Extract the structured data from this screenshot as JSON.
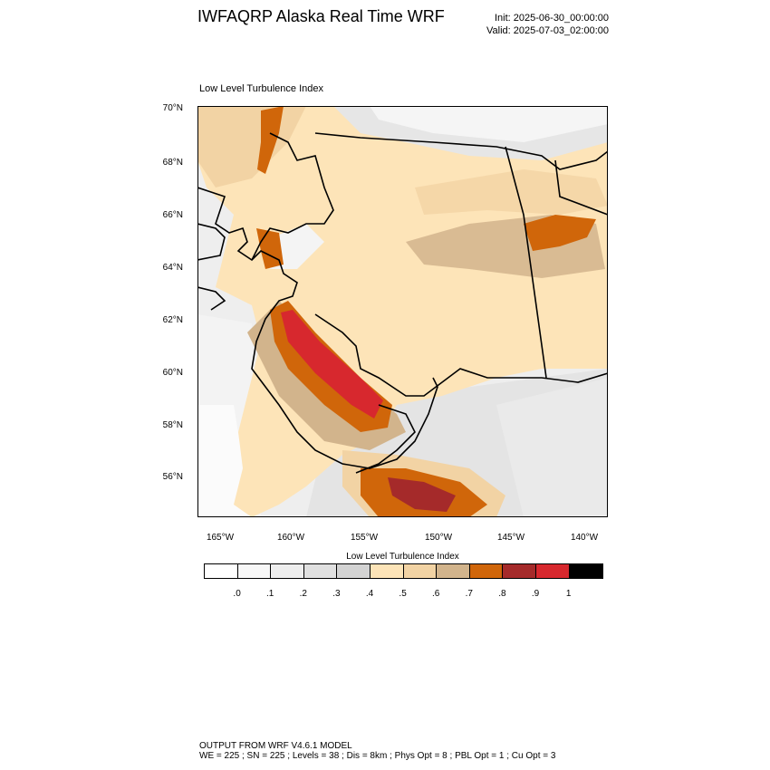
{
  "header": {
    "title": "IWFAQRP Alaska Real Time WRF",
    "init": "Init: 2025-06-30_00:00:00",
    "valid": "Valid: 2025-07-03_02:00:00"
  },
  "map": {
    "subtitle": "Low Level Turbulence Index",
    "lat_labels": [
      "70°N",
      "68°N",
      "66°N",
      "64°N",
      "62°N",
      "60°N",
      "58°N",
      "56°N"
    ],
    "lon_labels": [
      "165°W",
      "160°W",
      "155°W",
      "150°W",
      "145°W",
      "140°W"
    ]
  },
  "colorbar": {
    "title": "Low Level Turbulence Index",
    "labels": [
      ".0",
      ".1",
      ".2",
      ".3",
      ".4",
      ".5",
      ".6",
      ".7",
      ".8",
      ".9",
      "1"
    ],
    "colors": [
      "#ffffff",
      "#f7f7f7",
      "#eeeeee",
      "#e0e0e0",
      "#d3d3d3",
      "#fde4b8",
      "#f2d3a4",
      "#d2b48c",
      "#d0660a",
      "#a52a2a",
      "#d7282e",
      "#000000"
    ]
  },
  "footer": {
    "line1": "OUTPUT FROM WRF V4.6.1 MODEL",
    "line2": "WE = 225 ; SN = 225 ; Levels = 38 ; Dis = 8km ; Phys Opt = 8 ; PBL Opt = 1 ; Cu Opt = 3"
  }
}
